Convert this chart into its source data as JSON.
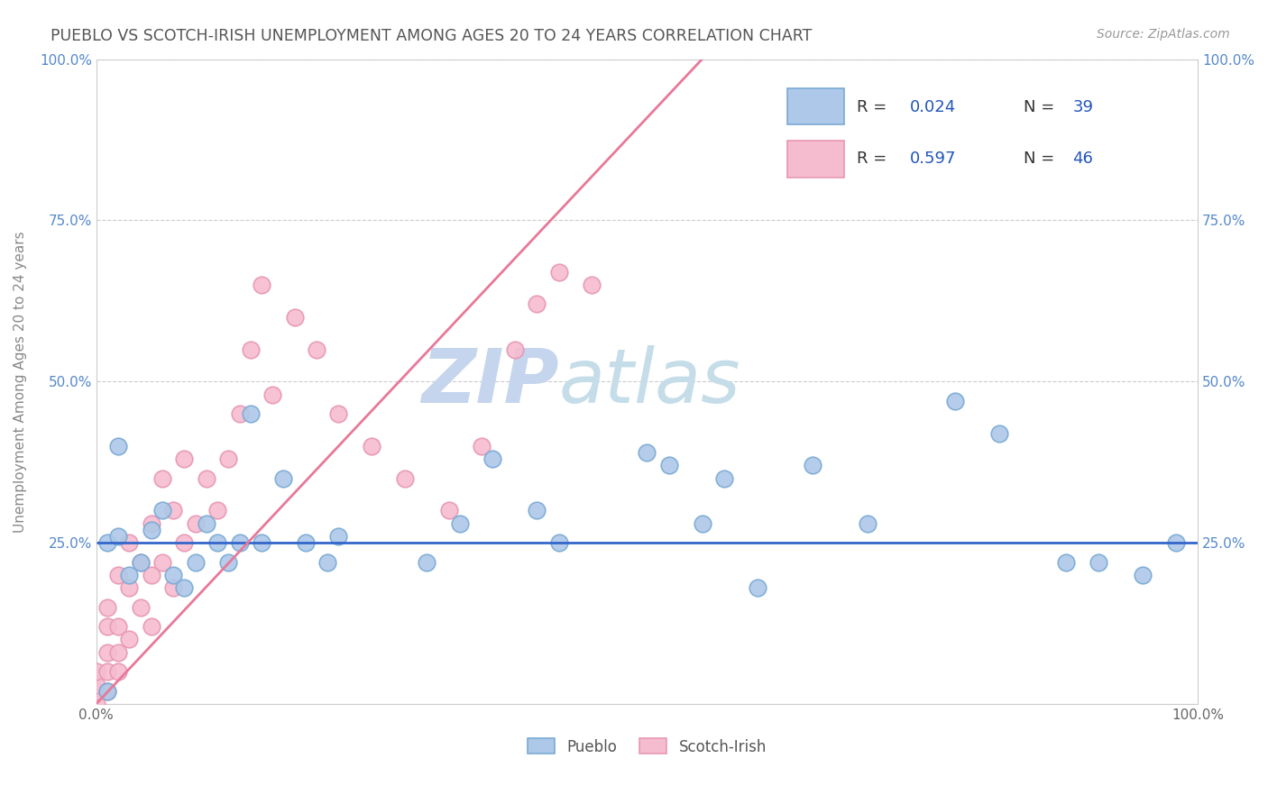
{
  "title": "PUEBLO VS SCOTCH-IRISH UNEMPLOYMENT AMONG AGES 20 TO 24 YEARS CORRELATION CHART",
  "source": "Source: ZipAtlas.com",
  "ylabel": "Unemployment Among Ages 20 to 24 years",
  "xlim": [
    0,
    100
  ],
  "ylim": [
    0,
    100
  ],
  "xticks": [
    0,
    25,
    50,
    75,
    100
  ],
  "xticklabels": [
    "0.0%",
    "",
    "",
    "",
    "100.0%"
  ],
  "yticks": [
    0,
    25,
    50,
    75,
    100
  ],
  "yticklabels": [
    "",
    "25.0%",
    "50.0%",
    "75.0%",
    "100.0%"
  ],
  "right_yticklabels": [
    "",
    "25.0%",
    "50.0%",
    "75.0%",
    "100.0%"
  ],
  "pueblo_color": "#adc8e8",
  "pueblo_edge_color": "#7aaad4",
  "scotch_color": "#f5bcd0",
  "scotch_edge_color": "#e896b4",
  "pueblo_R": 0.024,
  "pueblo_N": 39,
  "scotch_R": 0.597,
  "scotch_N": 46,
  "pueblo_line_color": "#3366cc",
  "scotch_line_color": "#e87898",
  "watermark_zip": "ZIP",
  "watermark_atlas": "atlas",
  "watermark_color_zip": "#c8d8f0",
  "watermark_color_atlas": "#c8d8e8",
  "title_color": "#555555",
  "legend_r_color": "#2255bb",
  "legend_n_color": "#2255bb",
  "legend_label_color": "#333333",
  "pueblo_x": [
    1,
    1,
    2,
    2,
    3,
    4,
    5,
    6,
    7,
    8,
    9,
    10,
    11,
    12,
    13,
    14,
    15,
    17,
    19,
    21,
    22,
    30,
    33,
    36,
    40,
    42,
    50,
    52,
    55,
    57,
    60,
    65,
    70,
    78,
    82,
    88,
    91,
    95,
    98
  ],
  "pueblo_y": [
    2,
    25,
    26,
    40,
    20,
    22,
    27,
    30,
    20,
    18,
    22,
    28,
    25,
    22,
    25,
    45,
    25,
    35,
    25,
    22,
    26,
    22,
    28,
    38,
    30,
    25,
    39,
    37,
    28,
    35,
    18,
    37,
    28,
    47,
    42,
    22,
    22,
    20,
    25
  ],
  "scotch_x": [
    0,
    0,
    0,
    0,
    1,
    1,
    1,
    1,
    1,
    2,
    2,
    2,
    2,
    3,
    3,
    3,
    4,
    4,
    5,
    5,
    5,
    6,
    6,
    7,
    7,
    8,
    8,
    9,
    10,
    11,
    12,
    13,
    14,
    15,
    16,
    18,
    20,
    22,
    25,
    28,
    32,
    35,
    38,
    40,
    42,
    45
  ],
  "scotch_y": [
    0,
    2,
    3,
    5,
    2,
    5,
    8,
    12,
    15,
    5,
    8,
    12,
    20,
    10,
    18,
    25,
    15,
    22,
    12,
    20,
    28,
    22,
    35,
    18,
    30,
    25,
    38,
    28,
    35,
    30,
    38,
    45,
    55,
    65,
    48,
    60,
    55,
    45,
    40,
    35,
    30,
    40,
    55,
    62,
    67,
    65
  ],
  "scotch_trendline_x": [
    0,
    55
  ],
  "scotch_trendline_y": [
    0,
    100
  ],
  "pueblo_trendline_y": 25
}
